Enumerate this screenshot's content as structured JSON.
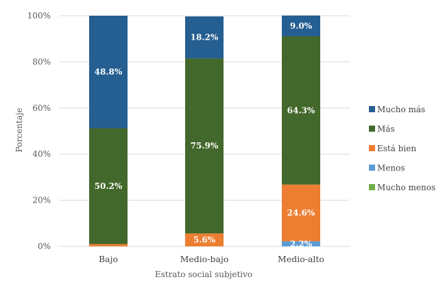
{
  "chart_data": {
    "type": "bar",
    "stacked": true,
    "categories": [
      "Bajo",
      "Medio-bajo",
      "Medio-alto"
    ],
    "series": [
      {
        "name": "Mucho menos",
        "color": "#70AD47",
        "values": [
          0.0,
          0.0,
          0.0
        ],
        "labels": [
          "",
          "",
          ""
        ]
      },
      {
        "name": "Menos",
        "color": "#5B9BD5",
        "values": [
          0.0,
          0.0,
          2.2
        ],
        "labels": [
          "",
          "",
          "2.2%"
        ]
      },
      {
        "name": "Está bien",
        "color": "#ED7D31",
        "values": [
          1.0,
          5.6,
          24.6
        ],
        "labels": [
          "",
          "5.6%",
          "24.6%"
        ]
      },
      {
        "name": "Más",
        "color": "#43682B",
        "values": [
          50.2,
          75.9,
          64.3
        ],
        "labels": [
          "50.2%",
          "75.9%",
          "64.3%"
        ]
      },
      {
        "name": "Mucho más",
        "color": "#255E91",
        "values": [
          48.8,
          18.2,
          9.0
        ],
        "labels": [
          "48.8%",
          "18.2%",
          "9.0%"
        ]
      }
    ],
    "legend_order": [
      "Mucho más",
      "Más",
      "Está bien",
      "Menos",
      "Mucho menos"
    ],
    "xlabel": "Estrato social subjetivo",
    "ylabel": "Porcentaje",
    "ylim": [
      0,
      100
    ],
    "yticks": [
      "0%",
      "20%",
      "40%",
      "60%",
      "80%",
      "100%"
    ],
    "grid": true,
    "legend_position": "right"
  }
}
